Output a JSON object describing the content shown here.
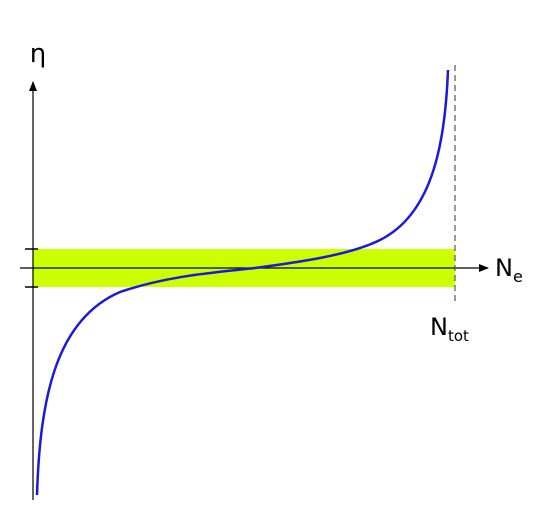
{
  "axes": {
    "y_label": "η",
    "x_label": {
      "main": "N",
      "sub": "e"
    }
  },
  "markers": {
    "n_tot": {
      "main": "N",
      "sub": "tot"
    }
  }
}
